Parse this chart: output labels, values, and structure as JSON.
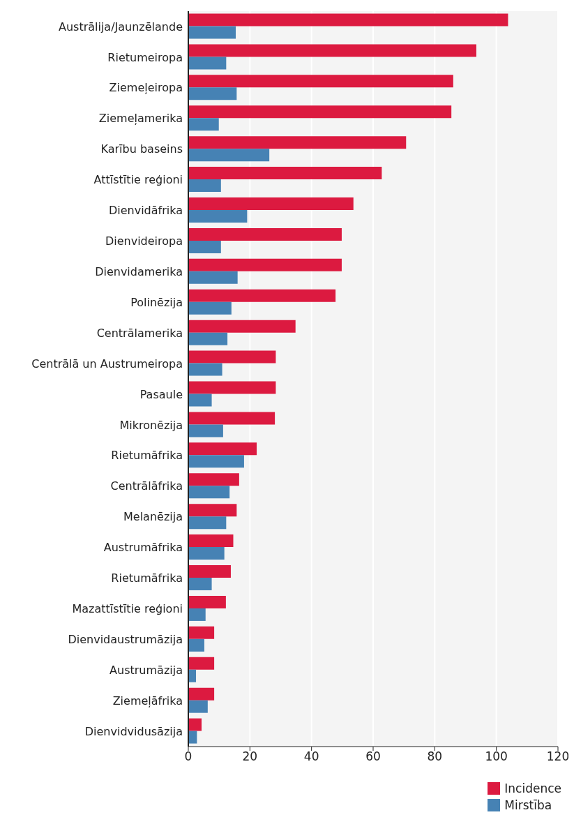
{
  "chart_data": {
    "type": "bar",
    "orientation": "horizontal",
    "categories": [
      "Austrālija/Jaunzēlande",
      "Rietumeiropa",
      "Ziemeļeiropa",
      "Ziemeļamerika",
      "Karību baseins",
      "Attīstītie reģioni",
      "Dienvidāfrika",
      "Dienvideiropa",
      "Dienvidamerika",
      "Polinēzija",
      "Centrālamerika",
      "Centrālā un Austrumeiropa",
      "Pasaule",
      "Mikronēzija",
      "Rietumāfrika",
      "Centrālāfrika",
      "Melanēzija",
      "Austrumāfrika",
      "Rietumāfrika",
      "Mazattīstītie reģioni",
      "Dienvidaustrumāzija",
      "Austrumāzija",
      "Ziemeļāfrika",
      "Dienvidvidusāzija"
    ],
    "series": [
      {
        "name": "Incidence",
        "color": "#dc1a40",
        "values": [
          103.8,
          93.5,
          86.0,
          85.4,
          70.7,
          62.8,
          53.6,
          49.8,
          49.8,
          47.8,
          34.8,
          28.4,
          28.4,
          28.1,
          22.2,
          16.5,
          15.7,
          14.6,
          13.8,
          12.2,
          8.4,
          8.4,
          8.4,
          4.3
        ]
      },
      {
        "name": "Mirstība",
        "color": "#4682b4",
        "values": [
          15.4,
          12.3,
          15.7,
          9.9,
          26.3,
          10.6,
          19.1,
          10.6,
          16.0,
          14.0,
          12.7,
          11.0,
          7.6,
          11.3,
          18.1,
          13.4,
          12.3,
          11.7,
          7.6,
          5.6,
          5.2,
          2.5,
          6.3,
          2.8
        ]
      }
    ],
    "xlim": [
      0,
      120
    ],
    "xticks": [
      0,
      20,
      40,
      60,
      80,
      100,
      120
    ],
    "grid": "x",
    "legend": "bottom right"
  }
}
